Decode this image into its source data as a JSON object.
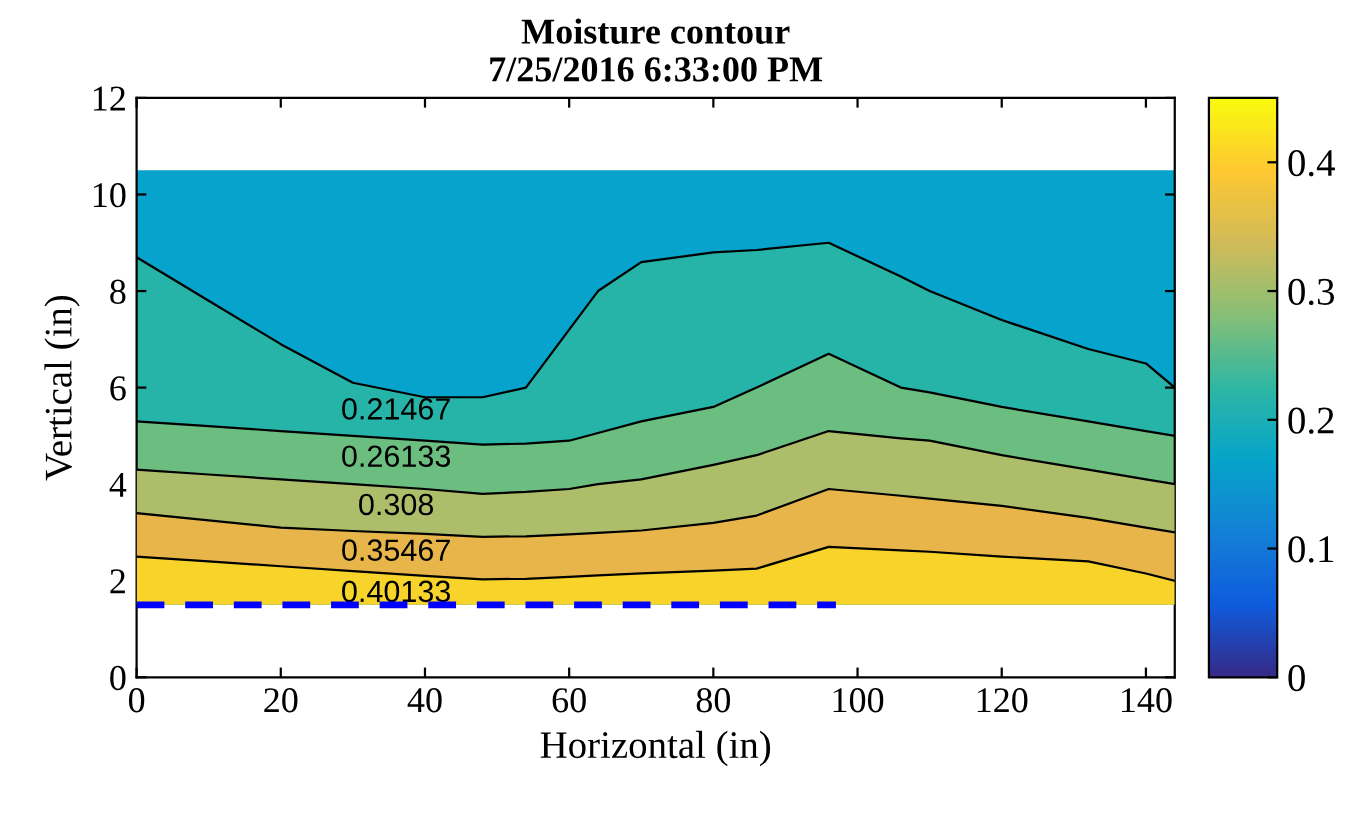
{
  "chart_data": {
    "type": "area",
    "title": "Moisture contour\n7/25/2016 6:33:00 PM",
    "xlabel": "Horizontal (in)",
    "ylabel": "Vertical (in)",
    "xlim": [
      0,
      144
    ],
    "ylim": [
      0,
      12
    ],
    "xticks": [
      0,
      20,
      40,
      60,
      80,
      100,
      120,
      140
    ],
    "yticks": [
      0,
      2,
      4,
      6,
      8,
      10,
      12
    ],
    "clim": [
      0,
      0.45
    ],
    "cticks": [
      0,
      0.1,
      0.2,
      0.3,
      0.4
    ],
    "grid": false,
    "bands": [
      {
        "axis": "y",
        "from": 1.5,
        "to": 10.5,
        "color": "#06a4cc"
      }
    ],
    "x": [
      0,
      10,
      20,
      30,
      40,
      48,
      54,
      60,
      64,
      70,
      80,
      86,
      96,
      106,
      110,
      120,
      132,
      140,
      144
    ],
    "series": [
      {
        "name": "0.21467",
        "color": "#26b3a8",
        "values": [
          8.7,
          7.8,
          6.9,
          6.1,
          5.8,
          5.8,
          6.0,
          7.2,
          8.0,
          8.6,
          8.8,
          8.85,
          9.0,
          8.3,
          8.0,
          7.4,
          6.8,
          6.5,
          6.0
        ]
      },
      {
        "name": "0.26133",
        "color": "#6cbd80",
        "values": [
          5.3,
          5.2,
          5.1,
          5.0,
          4.9,
          4.82,
          4.84,
          4.9,
          5.06,
          5.3,
          5.6,
          6.0,
          6.7,
          6.0,
          5.9,
          5.6,
          5.3,
          5.1,
          5.0
        ]
      },
      {
        "name": "0.308",
        "color": "#adbd6a",
        "values": [
          4.3,
          4.2,
          4.1,
          4.0,
          3.9,
          3.8,
          3.84,
          3.9,
          4.0,
          4.1,
          4.4,
          4.6,
          5.1,
          4.95,
          4.9,
          4.6,
          4.3,
          4.1,
          4.0
        ]
      },
      {
        "name": "0.35467",
        "color": "#e8b54a",
        "values": [
          3.4,
          3.25,
          3.1,
          3.03,
          2.97,
          2.91,
          2.92,
          2.96,
          2.99,
          3.04,
          3.2,
          3.35,
          3.9,
          3.76,
          3.7,
          3.55,
          3.3,
          3.1,
          3.0
        ]
      },
      {
        "name": "0.40133",
        "color": "#f8d42a",
        "values": [
          2.5,
          2.4,
          2.3,
          2.2,
          2.1,
          2.03,
          2.04,
          2.08,
          2.11,
          2.15,
          2.21,
          2.25,
          2.7,
          2.63,
          2.6,
          2.5,
          2.4,
          2.15,
          2.0
        ]
      },
      {
        "type": "line",
        "color": "#0000ff",
        "line_style": "dashed",
        "x": [
          0,
          97
        ],
        "values": [
          1.5,
          1.5
        ]
      }
    ]
  }
}
